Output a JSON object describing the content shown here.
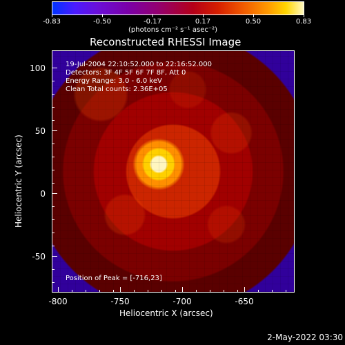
{
  "colorbar": {
    "ticks": [
      "-0.83",
      "-0.50",
      "-0.17",
      "0.17",
      "0.50",
      "0.83"
    ],
    "units": "(photons cm⁻² s⁻¹ asec⁻²)"
  },
  "title": "Reconstructed RHESSI Image",
  "info_lines": {
    "line1": "19-Jul-2004 22:10:52.000 to 22:16:52.000",
    "line2": "Detectors: 3F 4F 5F 6F 7F 8F, Att 0",
    "line3": "Energy Range: 3.0 - 6.0 keV",
    "line4": "Clean     Total counts: 2.36E+05"
  },
  "peak_text": "Position of Peak = [-716,23]",
  "axes": {
    "x_title": "Heliocentric X (arcsec)",
    "y_title": "Heliocentric Y (arcsec)",
    "x_ticks": [
      "-800",
      "-750",
      "-700",
      "-650"
    ],
    "y_ticks": [
      "100",
      "50",
      "0",
      "-50"
    ]
  },
  "footer": {
    "timestamp": "2-May-2022 03:30"
  },
  "colors": {
    "background": "#000000",
    "text": "#ffffff",
    "accent_hot": "#ffd000",
    "accent_mid": "#b40018",
    "accent_cool": "#31009b"
  }
}
